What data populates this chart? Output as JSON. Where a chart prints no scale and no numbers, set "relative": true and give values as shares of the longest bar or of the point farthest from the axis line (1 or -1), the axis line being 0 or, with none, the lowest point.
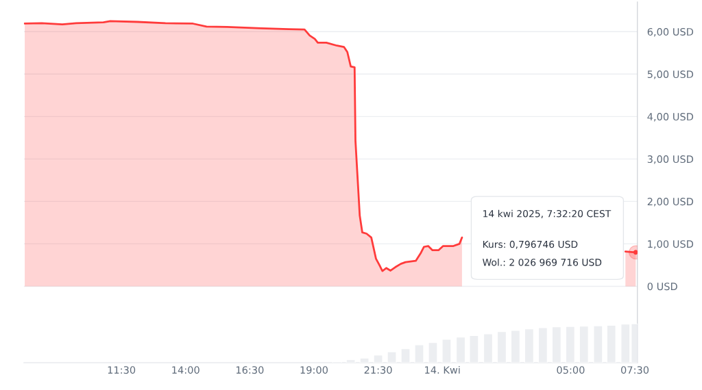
{
  "chart_data": [
    {
      "type": "area",
      "x": [
        "2025-04-13T07:44",
        "2025-04-13T08:24",
        "2025-04-13T09:12",
        "2025-04-13T09:44",
        "2025-04-13T10:48",
        "2025-04-13T11:04",
        "2025-04-13T12:08",
        "2025-04-13T13:13",
        "2025-04-13T14:17",
        "2025-04-13T14:49",
        "2025-04-13T15:37",
        "2025-04-13T16:57",
        "2025-04-13T18:01",
        "2025-04-13T18:38",
        "2025-04-13T18:50",
        "2025-04-13T19:02",
        "2025-04-13T19:09",
        "2025-04-13T19:29",
        "2025-04-13T19:54",
        "2025-04-13T20:10",
        "2025-04-13T20:18",
        "2025-04-13T20:26",
        "2025-04-13T20:35",
        "2025-04-13T20:37",
        "2025-04-13T20:47",
        "2025-04-13T20:53",
        "2025-04-13T21:03",
        "2025-04-13T21:14",
        "2025-04-13T21:25",
        "2025-04-13T21:33",
        "2025-04-13T21:40",
        "2025-04-13T21:49",
        "2025-04-13T21:59",
        "2025-04-13T22:10",
        "2025-04-13T22:23",
        "2025-04-13T22:34",
        "2025-04-13T22:58",
        "2025-04-13T23:10",
        "2025-04-13T23:17",
        "2025-04-13T23:27",
        "2025-04-13T23:37",
        "2025-04-13T23:51",
        "2025-04-14T00:02",
        "2025-04-14T00:26",
        "2025-04-14T00:40",
        "2025-04-14T00:46",
        "2025-04-14T04:00",
        "2025-04-14T07:08",
        "2025-04-14T07:32"
      ],
      "series": [
        {
          "color": "#ff3b3b",
          "values": [
            6.19,
            6.2,
            6.17,
            6.2,
            6.22,
            6.25,
            6.23,
            6.2,
            6.19,
            6.12,
            6.11,
            6.08,
            6.06,
            6.05,
            5.91,
            5.83,
            5.74,
            5.74,
            5.67,
            5.64,
            5.52,
            5.18,
            5.16,
            3.43,
            1.67,
            1.27,
            1.24,
            1.15,
            0.65,
            0.5,
            0.36,
            0.43,
            0.37,
            0.45,
            0.53,
            0.57,
            0.6,
            0.79,
            0.93,
            0.95,
            0.85,
            0.85,
            0.95,
            0.95,
            1.0,
            1.15,
            null,
            0.82,
            0.8
          ]
        }
      ],
      "xlim": [
        "2025-04-13T07:42",
        "2025-04-14T07:36"
      ],
      "xticks": [
        {
          "value": "2025-04-13T11:30",
          "label": "11:30"
        },
        {
          "value": "2025-04-13T14:00",
          "label": "14:00"
        },
        {
          "value": "2025-04-13T16:30",
          "label": "16:30"
        },
        {
          "value": "2025-04-13T19:00",
          "label": "19:00"
        },
        {
          "value": "2025-04-13T21:30",
          "label": "21:30"
        },
        {
          "value": "2025-04-14T00:00",
          "label": "14. Kwi"
        },
        {
          "value": "2025-04-14T05:00",
          "label": "05:00"
        },
        {
          "value": "2025-04-14T07:30",
          "label": "07:30"
        }
      ],
      "ylim": [
        -1.8,
        6.7
      ],
      "yticks": [
        {
          "value": 0,
          "label": "0 USD"
        },
        {
          "value": 1,
          "label": "1,00 USD"
        },
        {
          "value": 2,
          "label": "2,00 USD"
        },
        {
          "value": 3,
          "label": "3,00 USD"
        },
        {
          "value": 4,
          "label": "4,00 USD"
        },
        {
          "value": 5,
          "label": "5,00 USD"
        },
        {
          "value": 6,
          "label": "6,00 USD"
        }
      ],
      "grid": "y",
      "annotations": [
        "14 kwi 2025, 7:32:20 CEST",
        "Kurs: 0,796746 USD",
        "Wol.: 2 026 969 716 USD"
      ]
    },
    {
      "type": "bar",
      "relative": true,
      "tick_labels": false,
      "xlim": [
        "2025-04-13T07:42",
        "2025-04-14T07:36"
      ],
      "color": "#eceef1",
      "x": [
        "2025-04-13T19:54",
        "2025-04-13T20:26",
        "2025-04-13T20:58",
        "2025-04-13T21:30",
        "2025-04-13T22:02",
        "2025-04-13T22:34",
        "2025-04-13T23:06",
        "2025-04-13T23:38",
        "2025-04-14T00:10",
        "2025-04-14T00:43",
        "2025-04-14T01:14",
        "2025-04-14T01:47",
        "2025-04-14T02:19",
        "2025-04-14T02:51",
        "2025-04-14T03:23",
        "2025-04-14T03:55",
        "2025-04-14T04:27",
        "2025-04-14T04:59",
        "2025-04-14T05:31",
        "2025-04-14T06:04",
        "2025-04-14T06:35",
        "2025-04-14T07:08",
        "2025-04-14T07:32"
      ],
      "values": [
        0.03,
        0.08,
        0.12,
        0.2,
        0.28,
        0.36,
        0.46,
        0.52,
        0.6,
        0.66,
        0.7,
        0.74,
        0.8,
        0.83,
        0.87,
        0.9,
        0.92,
        0.93,
        0.94,
        0.95,
        0.96,
        0.99,
        1.0
      ]
    }
  ]
}
